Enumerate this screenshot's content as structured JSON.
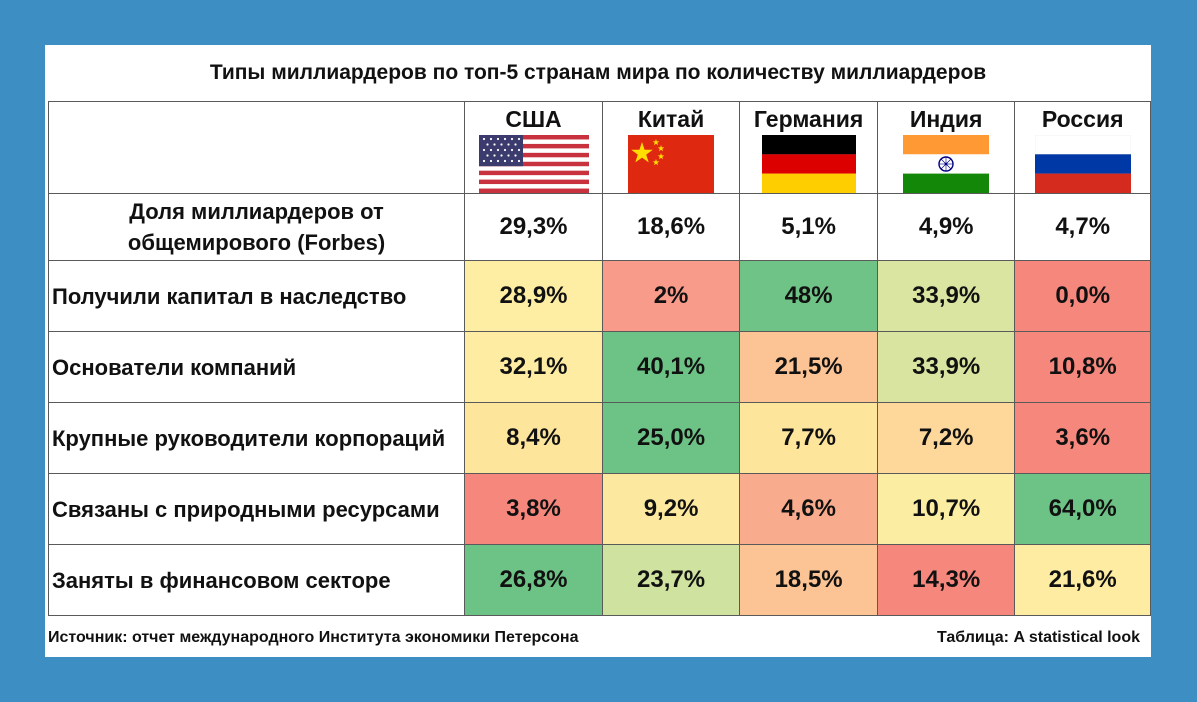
{
  "chart_data": {
    "type": "table",
    "title": "Типы миллиардеров по топ-5 странам мира по количеству миллиардеров",
    "columns": [
      "США",
      "Китай",
      "Германия",
      "Индия",
      "Россия"
    ],
    "flags": [
      "flag-usa-icon",
      "flag-china-icon",
      "flag-germany-icon",
      "flag-india-icon",
      "flag-russia-icon"
    ],
    "share_row": {
      "label": "Доля миллиардеров от общемирового (Forbes)",
      "values": [
        "29,3%",
        "18,6%",
        "5,1%",
        "4,9%",
        "4,7%"
      ]
    },
    "rows": [
      {
        "label": "Получили капитал в наследство",
        "values": [
          "28,9%",
          "2%",
          "48%",
          "33,9%",
          "0,0%"
        ],
        "colors": [
          "#fdeea3",
          "#f89b8b",
          "#6fc387",
          "#d9e5a0",
          "#f6877d"
        ]
      },
      {
        "label": "Основатели компаний",
        "values": [
          "32,1%",
          "40,1%",
          "21,5%",
          "33,9%",
          "10,8%"
        ],
        "colors": [
          "#fdeca2",
          "#6dc285",
          "#fcc494",
          "#d8e49f",
          "#f6877d"
        ]
      },
      {
        "label": "Крупные руководители корпораций",
        "values": [
          "8,4%",
          "25,0%",
          "7,7%",
          "7,2%",
          "3,6%"
        ],
        "colors": [
          "#fde59c",
          "#6dc285",
          "#fde59c",
          "#fdd89a",
          "#f6877d"
        ]
      },
      {
        "label": "Связаны с природными ресурсами",
        "values": [
          "3,8%",
          "9,2%",
          "4,6%",
          "10,7%",
          "64,0%"
        ],
        "colors": [
          "#f6877d",
          "#fce99f",
          "#f9ac8d",
          "#fbeea2",
          "#6dc285"
        ]
      },
      {
        "label": "Заняты в финансовом секторе",
        "values": [
          "26,8%",
          "23,7%",
          "18,5%",
          "14,3%",
          "21,6%"
        ],
        "colors": [
          "#6dc285",
          "#cfe29f",
          "#fcc494",
          "#f6877d",
          "#fdeca2"
        ]
      }
    ]
  },
  "footer": {
    "source": "Источник: отчет международного Института экономики Петерсона",
    "credit": "Таблица: A statistical look"
  }
}
